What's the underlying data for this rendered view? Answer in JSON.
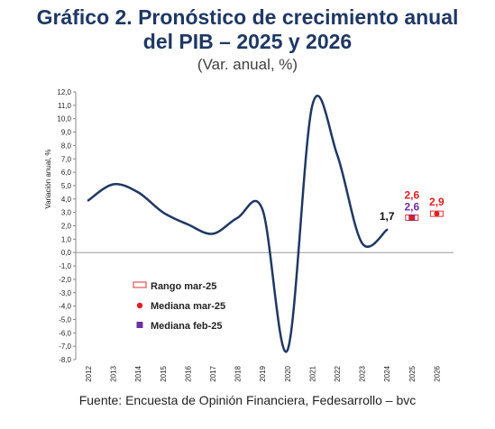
{
  "title_line1": "Gráfico 2. Pronóstico de crecimiento anual",
  "title_line2": "del PIB – 2025 y 2026",
  "subtitle": "(Var. anual, %)",
  "source": "Fuente: Encuesta de Opinión Financiera, Fedesarrollo – bvc",
  "colors": {
    "title": "#1f3864",
    "line": "#1f3864",
    "range": "#e03030",
    "median_mar": "#e02020",
    "median_feb": "#7030a0"
  },
  "chart_data": {
    "type": "line",
    "ylabel": "Variación anual, %",
    "ylim": [
      -8,
      12
    ],
    "y_ticks": [
      "12,0",
      "11,0",
      "10,0",
      "9,0",
      "8,0",
      "7,0",
      "6,0",
      "5,0",
      "4,0",
      "3,0",
      "2,0",
      "1,0",
      "0,0",
      "-1,0",
      "-2,0",
      "-3,0",
      "-4,0",
      "-5,0",
      "-6,0",
      "-7,0",
      "-8,0"
    ],
    "x_ticks": [
      "2012",
      "2013",
      "2014",
      "2015",
      "2016",
      "2017",
      "2018",
      "2019",
      "2020",
      "2021",
      "2022",
      "2023",
      "2024",
      "2025",
      "2026"
    ],
    "series": [
      {
        "type": "line",
        "x": [
          2012,
          2013,
          2014,
          2015,
          2016,
          2017,
          2018,
          2019,
          2020,
          2021,
          2022,
          2023,
          2024
        ],
        "values": [
          3.9,
          5.1,
          4.5,
          3.0,
          2.1,
          1.4,
          2.6,
          3.2,
          -7.3,
          11.0,
          7.3,
          0.7,
          1.7
        ],
        "last_label": "1,7"
      },
      {
        "name": "Rango mar-25",
        "type": "range",
        "x": [
          2025,
          2026
        ],
        "low": [
          2.4,
          2.7
        ],
        "high": [
          2.8,
          3.1
        ]
      },
      {
        "name": "Mediana mar-25",
        "type": "marker",
        "x": [
          2025,
          2026
        ],
        "values": [
          2.6,
          2.9
        ],
        "labels": [
          "2,6",
          "2,9"
        ]
      },
      {
        "name": "Mediana feb-25",
        "type": "marker",
        "x": [
          2025
        ],
        "values": [
          2.6
        ],
        "labels": [
          "2,6"
        ]
      }
    ],
    "legend": {
      "position": "bottom-left",
      "items": [
        "Rango mar-25",
        "Mediana mar-25",
        "Mediana feb-25"
      ]
    }
  }
}
